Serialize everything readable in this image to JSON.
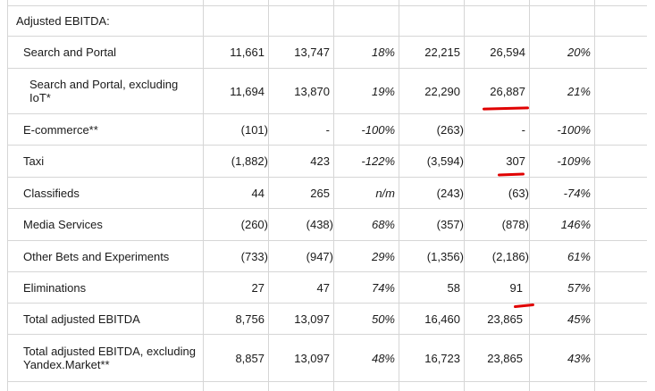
{
  "section_title": "Adjusted EBITDA:",
  "rows": [
    {
      "label": "Search and Portal",
      "c1": "11,661",
      "c2": "13,747",
      "c3": "18%",
      "c4": "22,215",
      "c5": "26,594",
      "c6": "20%"
    },
    {
      "label": "Search and Portal, excluding IoT*",
      "c1": "11,694",
      "c2": "13,870",
      "c3": "19%",
      "c4": "22,290",
      "c5": "26,887",
      "c6": "21%"
    },
    {
      "label": "E-commerce**",
      "c1": "(101)",
      "c2": "-",
      "c3": "-100%",
      "c4": "(263)",
      "c5": "-",
      "c6": "-100%"
    },
    {
      "label": "Taxi",
      "c1": "(1,882)",
      "c2": "423",
      "c3": "-122%",
      "c4": "(3,594)",
      "c5": "307",
      "c6": "-109%"
    },
    {
      "label": "Classifieds",
      "c1": "44",
      "c2": "265",
      "c3": "n/m",
      "c4": "(243)",
      "c5": "(63)",
      "c6": "-74%"
    },
    {
      "label": "Media Services",
      "c1": "(260)",
      "c2": "(438)",
      "c3": "68%",
      "c4": "(357)",
      "c5": "(878)",
      "c6": "146%"
    },
    {
      "label": "Other Bets and Experiments",
      "c1": "(733)",
      "c2": "(947)",
      "c3": "29%",
      "c4": "(1,356)",
      "c5": "(2,186)",
      "c6": "61%"
    },
    {
      "label": "Eliminations",
      "c1": "27",
      "c2": "47",
      "c3": "74%",
      "c4": "58",
      "c5": "91",
      "c6": "57%"
    },
    {
      "label": "Total adjusted EBITDA",
      "c1": "8,756",
      "c2": "13,097",
      "c3": "50%",
      "c4": "16,460",
      "c5": "23,865",
      "c6": "45%"
    },
    {
      "label": "Total adjusted EBITDA, excluding Yandex.Market**",
      "c1": "8,857",
      "c2": "13,097",
      "c3": "48%",
      "c4": "16,723",
      "c5": "23,865",
      "c6": "43%"
    }
  ],
  "colors": {
    "grid": "#d6d6d6",
    "text": "#1a1a1a",
    "annotation": "#e00000"
  }
}
